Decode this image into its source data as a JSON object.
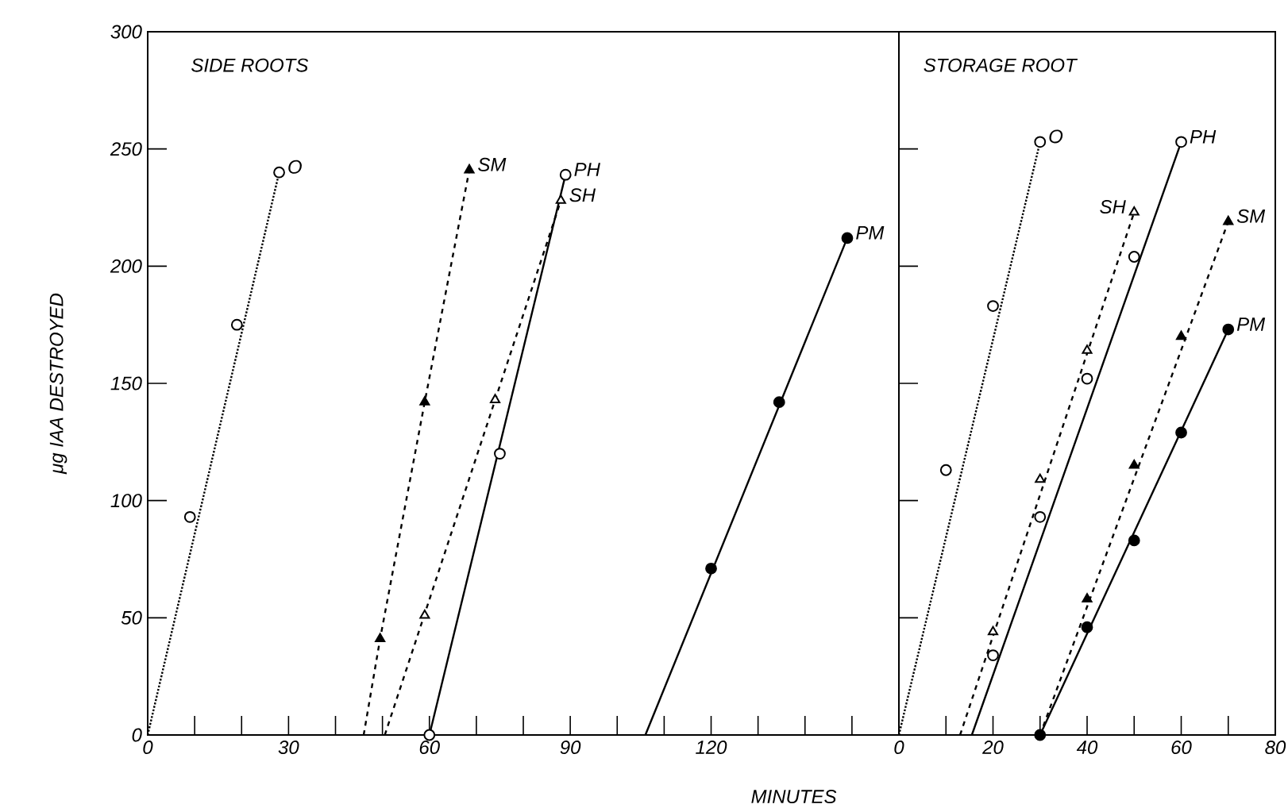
{
  "chart_data": [
    {
      "type": "line",
      "title": "SIDE ROOTS",
      "xlabel": "MINUTES",
      "ylabel": "μg IAA DESTROYED",
      "xlim": [
        0,
        160
      ],
      "ylim": [
        0,
        300
      ],
      "xticks": [
        0,
        {
          "value": 10,
          "label": null
        },
        {
          "value": 20,
          "label": null
        },
        30,
        {
          "value": 40,
          "label": null
        },
        {
          "value": 50,
          "label": null
        },
        60,
        {
          "value": 70,
          "label": null
        },
        {
          "value": 80,
          "label": null
        },
        90,
        {
          "value": 100,
          "label": null
        },
        {
          "value": 110,
          "label": null
        },
        120,
        {
          "value": 130,
          "label": null
        },
        {
          "value": 140,
          "label": null
        },
        {
          "value": 150,
          "label": null
        }
      ],
      "yticks": [
        0,
        50,
        100,
        150,
        200,
        250,
        300
      ],
      "series": [
        {
          "type": "line",
          "line_style": "dotted",
          "color": "#000000",
          "x": [
            0,
            28
          ],
          "values": [
            0,
            240
          ]
        },
        {
          "type": "scatter",
          "name": "O",
          "marker": "circle",
          "color": "#ffffff",
          "x": [
            9,
            19,
            28
          ],
          "values": [
            93,
            175,
            240
          ]
        },
        {
          "type": "line",
          "line_style": "dashed",
          "color": "#000000",
          "x": [
            46,
            49.5,
            59,
            68.5
          ],
          "values": [
            0,
            41,
            142,
            241
          ]
        },
        {
          "type": "scatter",
          "name": "SM",
          "marker": "triangle",
          "color": "#000000",
          "x": [
            49.5,
            59,
            68.5
          ],
          "values": [
            41,
            142,
            241
          ]
        },
        {
          "type": "line",
          "line_style": "dashed",
          "color": "#000000",
          "x": [
            50.5,
            88
          ],
          "values": [
            0,
            228
          ]
        },
        {
          "type": "scatter",
          "name": "SH",
          "marker": "triangle",
          "color": "#ffffff",
          "x": [
            59,
            74,
            88
          ],
          "values": [
            51,
            143,
            228
          ]
        },
        {
          "type": "line",
          "line_style": "solid",
          "color": "#000000",
          "x": [
            60,
            89
          ],
          "values": [
            0,
            239
          ]
        },
        {
          "type": "scatter",
          "name": "PH",
          "marker": "circle",
          "color": "#ffffff",
          "x": [
            60,
            75,
            89
          ],
          "values": [
            0,
            120,
            239
          ]
        },
        {
          "type": "line",
          "line_style": "solid",
          "color": "#000000",
          "x": [
            106,
            149
          ],
          "values": [
            0,
            212
          ]
        },
        {
          "type": "scatter",
          "name": "PM",
          "marker": "circle",
          "color": "#000000",
          "x": [
            120,
            134.5,
            149
          ],
          "values": [
            71,
            142,
            212
          ]
        }
      ]
    },
    {
      "type": "line",
      "title": "STORAGE ROOT",
      "tick_labels": "x",
      "xlim": [
        0,
        80
      ],
      "ylim": [
        0,
        300
      ],
      "xticks": [
        0,
        {
          "value": 10,
          "label": null
        },
        20,
        {
          "value": 30,
          "label": null
        },
        40,
        {
          "value": 50,
          "label": null
        },
        60,
        {
          "value": 70,
          "label": null
        },
        80
      ],
      "yticks": [
        {
          "value": 50,
          "label": null
        },
        {
          "value": 100,
          "label": null
        },
        {
          "value": 150,
          "label": null
        },
        {
          "value": 200,
          "label": null
        },
        {
          "value": 250,
          "label": null
        }
      ],
      "series": [
        {
          "type": "line",
          "line_style": "dotted",
          "color": "#000000",
          "x": [
            0,
            30
          ],
          "values": [
            0,
            253
          ]
        },
        {
          "type": "scatter",
          "name": "O",
          "marker": "circle",
          "color": "#ffffff",
          "x": [
            10,
            20,
            30
          ],
          "values": [
            113,
            183,
            253
          ]
        },
        {
          "type": "line",
          "line_style": "dashed",
          "color": "#000000",
          "x": [
            13,
            50
          ],
          "values": [
            0,
            223
          ]
        },
        {
          "type": "scatter",
          "name": "SH",
          "marker": "triangle",
          "color": "#ffffff",
          "x": [
            20,
            30,
            40,
            50
          ],
          "values": [
            44,
            109,
            164,
            223
          ]
        },
        {
          "type": "line",
          "line_style": "solid",
          "color": "#000000",
          "x": [
            15.5,
            60
          ],
          "values": [
            0,
            253
          ]
        },
        {
          "type": "scatter",
          "name": "PH",
          "marker": "circle",
          "color": "#ffffff",
          "x": [
            20,
            30,
            40,
            50,
            60
          ],
          "values": [
            34,
            93,
            152,
            204,
            253
          ]
        },
        {
          "type": "line",
          "line_style": "dashed",
          "color": "#000000",
          "x": [
            30,
            70
          ],
          "values": [
            0,
            219
          ]
        },
        {
          "type": "scatter",
          "name": "SM",
          "marker": "triangle",
          "color": "#000000",
          "x": [
            40,
            50,
            60,
            70
          ],
          "values": [
            58,
            115,
            170,
            219
          ]
        },
        {
          "type": "line",
          "line_style": "solid",
          "color": "#000000",
          "x": [
            30,
            70
          ],
          "values": [
            0,
            173
          ]
        },
        {
          "type": "scatter",
          "name": "PM",
          "marker": "circle",
          "color": "#000000",
          "x": [
            30,
            40,
            50,
            60,
            70
          ],
          "values": [
            0,
            46,
            83,
            129,
            173
          ]
        }
      ]
    }
  ]
}
